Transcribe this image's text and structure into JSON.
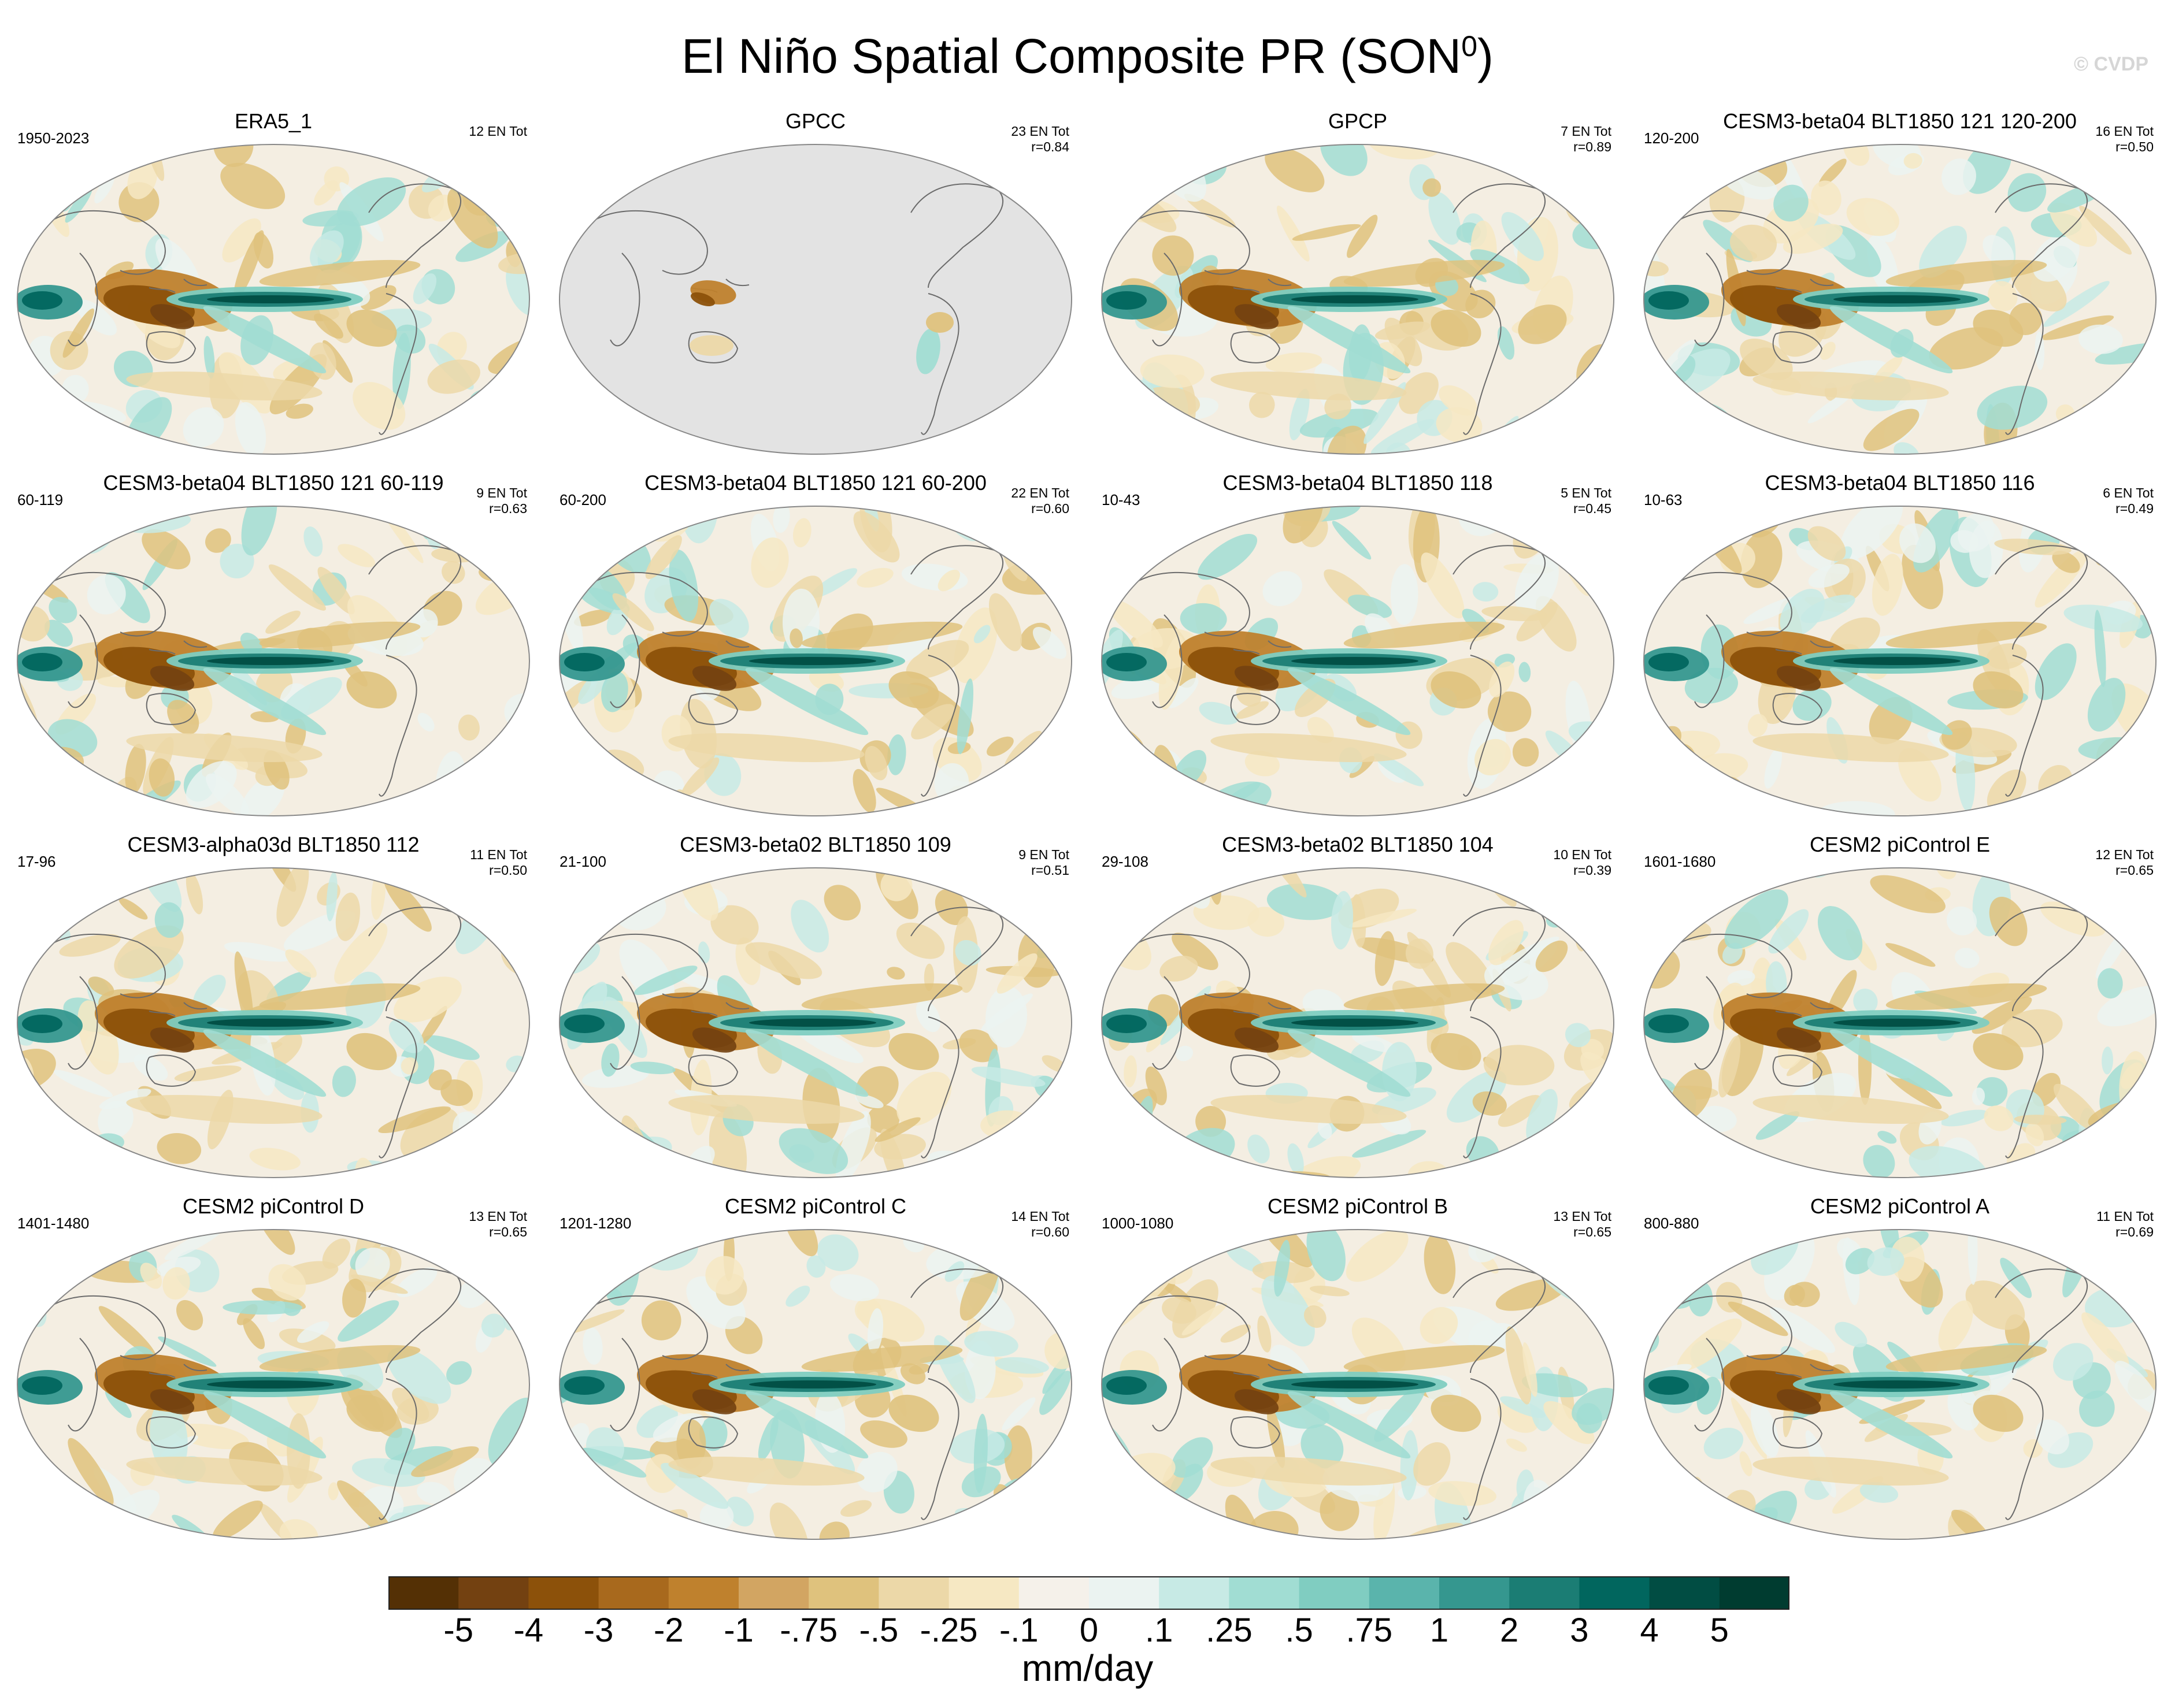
{
  "title": {
    "text": "El Niño Spatial Composite PR (SON",
    "superscript": "0",
    "close": ")"
  },
  "watermark": "© CVDP",
  "units": "mm/day",
  "colorbar": {
    "labels": [
      "-5",
      "-4",
      "-3",
      "-2",
      "-1",
      "-.75",
      "-.5",
      "-.25",
      "-.1",
      "0",
      ".1",
      ".25",
      ".5",
      ".75",
      "1",
      "2",
      "3",
      "4",
      "5"
    ],
    "colors": [
      "#543005",
      "#734111",
      "#8c510a",
      "#a8691d",
      "#bf812d",
      "#d2a562",
      "#dfc27d",
      "#ecd8a8",
      "#f6e8c3",
      "#f5f1ea",
      "#ebf3f1",
      "#c7eae5",
      "#a1ddd3",
      "#80cdc1",
      "#5ab4ac",
      "#35978f",
      "#1b7d74",
      "#01665e",
      "#014d43",
      "#003c30"
    ]
  },
  "chart_data": {
    "type": "heatmap",
    "title": "El Niño Spatial Composite PR (SON0)",
    "units": "mm/day",
    "contour_levels": [
      -5,
      -4,
      -3,
      -2,
      -1,
      -0.75,
      -0.5,
      -0.25,
      -0.1,
      0,
      0.1,
      0.25,
      0.5,
      0.75,
      1,
      2,
      3,
      4,
      5
    ],
    "panels": [
      {
        "name": "ERA5_1",
        "years": "1950-2023",
        "events": "12 EN Tot",
        "r": ""
      },
      {
        "name": "GPCC",
        "years": "",
        "events": "23 EN Tot",
        "r": "r=0.84"
      },
      {
        "name": "GPCP",
        "years": "",
        "events": "7 EN Tot",
        "r": "r=0.89"
      },
      {
        "name": "CESM3-beta04 BLT1850 121 120-200",
        "years": "120-200",
        "events": "16 EN Tot",
        "r": "r=0.50"
      },
      {
        "name": "CESM3-beta04 BLT1850 121 60-119",
        "years": "60-119",
        "events": "9 EN Tot",
        "r": "r=0.63"
      },
      {
        "name": "CESM3-beta04 BLT1850 121 60-200",
        "years": "60-200",
        "events": "22 EN Tot",
        "r": "r=0.60"
      },
      {
        "name": "CESM3-beta04 BLT1850 118",
        "years": "10-43",
        "events": "5 EN Tot",
        "r": "r=0.45"
      },
      {
        "name": "CESM3-beta04 BLT1850 116",
        "years": "10-63",
        "events": "6 EN Tot",
        "r": "r=0.49"
      },
      {
        "name": "CESM3-alpha03d BLT1850 112",
        "years": "17-96",
        "events": "11 EN Tot",
        "r": "r=0.50"
      },
      {
        "name": "CESM3-beta02 BLT1850 109",
        "years": "21-100",
        "events": "9 EN Tot",
        "r": "r=0.51"
      },
      {
        "name": "CESM3-beta02 BLT1850 104",
        "years": "29-108",
        "events": "10 EN Tot",
        "r": "r=0.39"
      },
      {
        "name": "CESM2 piControl E",
        "years": "1601-1680",
        "events": "12 EN Tot",
        "r": "r=0.65"
      },
      {
        "name": "CESM2 piControl D",
        "years": "1401-1480",
        "events": "13 EN Tot",
        "r": "r=0.65"
      },
      {
        "name": "CESM2 piControl C",
        "years": "1201-1280",
        "events": "14 EN Tot",
        "r": "r=0.60"
      },
      {
        "name": "CESM2 piControl B",
        "years": "1000-1080",
        "events": "13 EN Tot",
        "r": "r=0.65"
      },
      {
        "name": "CESM2 piControl A",
        "years": "800-880",
        "events": "11 EN Tot",
        "r": "r=0.69"
      }
    ]
  }
}
